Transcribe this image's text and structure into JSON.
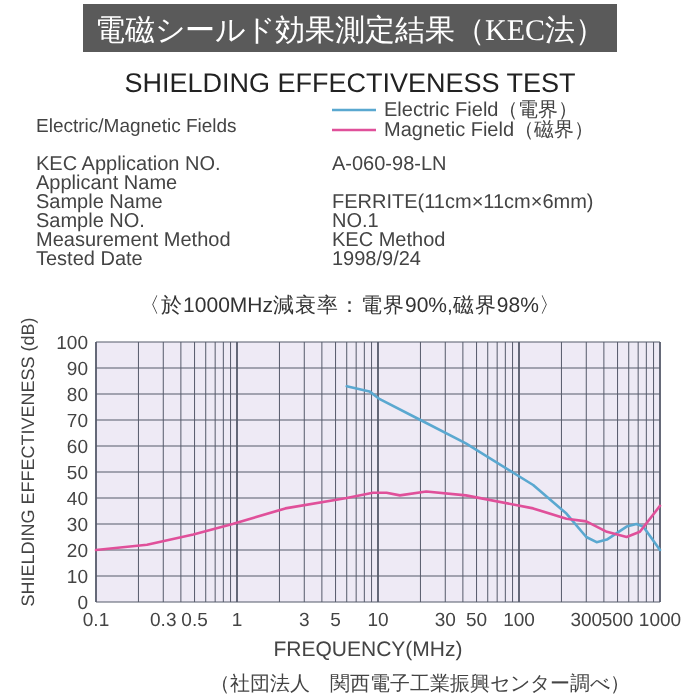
{
  "chart_data": {
    "type": "line",
    "title": "電磁シールド効果測定結果（KEC法）",
    "subtitle": "SHIELDING EFFECTIVENESS TEST",
    "legend_title": "Electric/Magnetic Fields",
    "legend": "top",
    "log": "x",
    "grid": true,
    "xlabel": "FREQUENCY(MHz)",
    "ylabel": "SHIELDING EFFECTIVENESS (dB)",
    "xlim": [
      0.1,
      1000
    ],
    "ylim": [
      0,
      100
    ],
    "xticks": [
      0.1,
      0.3,
      0.5,
      1,
      3,
      5,
      10,
      30,
      50,
      100,
      300,
      500,
      1000
    ],
    "yticks": [
      0,
      10,
      20,
      30,
      40,
      50,
      60,
      70,
      80,
      90,
      100
    ],
    "series": [
      {
        "name": "Electric Field（電界）",
        "color": "#5aa8d0",
        "x": [
          6,
          8.7,
          10.3,
          20,
          42,
          126,
          217,
          300,
          355,
          420,
          580,
          680,
          760,
          1000
        ],
        "values": [
          83,
          81,
          78,
          70,
          61,
          45,
          34,
          25,
          23,
          24,
          29,
          30,
          29,
          20
        ]
      },
      {
        "name": "Magnetic Field（磁界）",
        "color": "#e0509a",
        "x": [
          0.1,
          0.23,
          0.49,
          0.93,
          2.2,
          6,
          9.2,
          11.5,
          14.3,
          22,
          42,
          126,
          217,
          300,
          420,
          580,
          720,
          1000
        ],
        "values": [
          20,
          22,
          26,
          30,
          36,
          40,
          42,
          42,
          41,
          42.5,
          41,
          36,
          32,
          31,
          27,
          25,
          27,
          37
        ]
      }
    ],
    "annotations": [
      "KEC Application NO.",
      "Applicant Name",
      "Sample Name",
      "Sample NO.",
      "Measurement Method",
      "Tested Date",
      "A-060-98-LN",
      "FERRITE(11cm×11cm×6mm)",
      "NO.1",
      "KEC Method",
      "1998/9/24",
      "〈於1000MHz減衰率：電界90%,磁界98%〉",
      "（社団法人　関西電子工業振興センター調べ）"
    ]
  }
}
